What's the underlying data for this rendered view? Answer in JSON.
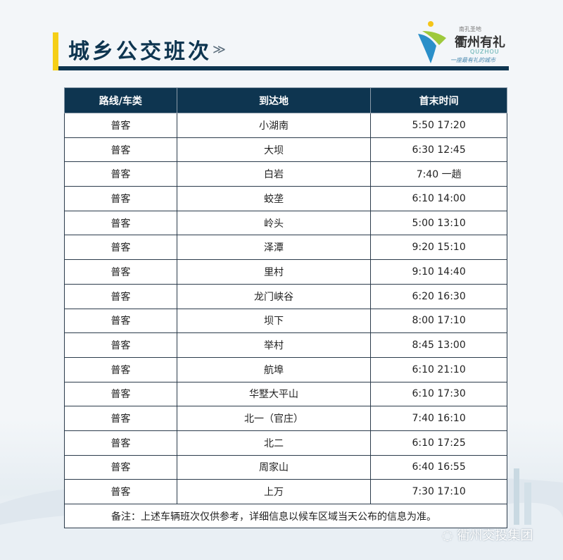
{
  "header": {
    "title": "城乡公交班次",
    "chevron_icon": "double-chevron-down-icon"
  },
  "logo": {
    "small": "南孔圣地",
    "main": "衢州有礼",
    "en": "QUZHOU",
    "slogan": "一座最有礼的城市"
  },
  "table": {
    "columns": [
      "路线/车类",
      "到达地",
      "首末时间"
    ],
    "rows": [
      [
        "普客",
        "小湖南",
        "5:50 17:20"
      ],
      [
        "普客",
        "大坝",
        "6:30 12:45"
      ],
      [
        "普客",
        "白岩",
        "7:40 一趟"
      ],
      [
        "普客",
        "蛟垄",
        "6:10 14:00"
      ],
      [
        "普客",
        "岭头",
        "5:00 13:10"
      ],
      [
        "普客",
        "泽潭",
        "9:20 15:10"
      ],
      [
        "普客",
        "里村",
        "9:10 14:40"
      ],
      [
        "普客",
        "龙门峡谷",
        "6:20 16:30"
      ],
      [
        "普客",
        "坝下",
        "8:00 17:10"
      ],
      [
        "普客",
        "举村",
        "8:45 13:00"
      ],
      [
        "普客",
        "航埠",
        "6:10 21:10"
      ],
      [
        "普客",
        "华墅大平山",
        "6:10 17:30"
      ],
      [
        "普客",
        "北一（官庄）",
        "7:40 16:10"
      ],
      [
        "普客",
        "北二",
        "6:10 17:25"
      ],
      [
        "普客",
        "周家山",
        "6:40 16:55"
      ],
      [
        "普客",
        "上万",
        "7:30 17:10"
      ]
    ],
    "note": "备注：上述车辆班次仅供参考，详细信息以候车区域当天公布的信息为准。"
  },
  "watermark": "衢州交投集团",
  "colors": {
    "navy": "#0e3550",
    "accent": "#f5cf17"
  }
}
